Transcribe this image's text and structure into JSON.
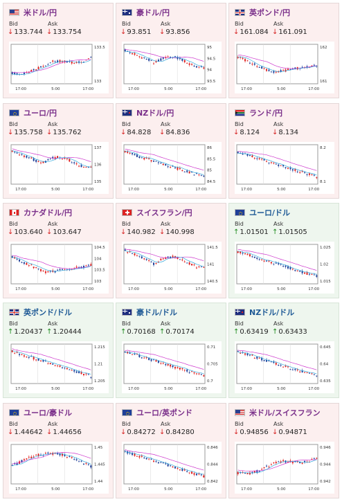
{
  "labels": {
    "bid": "Bid",
    "ask": "Ask"
  },
  "colors": {
    "down_bg": "#fcefef",
    "up_bg": "#eef6ee",
    "candle_up": "#e02020",
    "candle_down": "#1f3f99",
    "ma_long": "#cc33cc",
    "ma_short": "#33aadd"
  },
  "cards": [
    {
      "pair": "米ドル/円",
      "flag": "us",
      "direction": "down",
      "bid": "133.744",
      "ask": "133.754",
      "yticks": [
        "133.5",
        "133"
      ],
      "xticks": [
        "17:00",
        "5:00",
        "17:00"
      ],
      "trend": "up"
    },
    {
      "pair": "豪ドル/円",
      "flag": "au",
      "direction": "down",
      "bid": "93.851",
      "ask": "93.856",
      "yticks": [
        "95",
        "94.5",
        "94",
        "93.5"
      ],
      "xticks": [
        "17:00",
        "5:00",
        "17:00"
      ],
      "trend": "downflat"
    },
    {
      "pair": "英ポンド/円",
      "flag": "gb",
      "direction": "down",
      "bid": "161.084",
      "ask": "161.091",
      "yticks": [
        "162",
        "161"
      ],
      "xticks": [
        "17:00",
        "5:00",
        "17:00"
      ],
      "trend": "dip"
    },
    {
      "pair": "ユーロ/円",
      "flag": "eu",
      "direction": "down",
      "bid": "135.758",
      "ask": "135.762",
      "yticks": [
        "137",
        "136",
        "135"
      ],
      "xticks": [
        "17:00",
        "5:00",
        "17:00"
      ],
      "trend": "downflat"
    },
    {
      "pair": "NZドル/円",
      "flag": "nz",
      "direction": "down",
      "bid": "84.828",
      "ask": "84.836",
      "yticks": [
        "86",
        "85.5",
        "85",
        "84.5"
      ],
      "xticks": [
        "17:00",
        "5:00",
        "17:00"
      ],
      "trend": "down"
    },
    {
      "pair": "ランド/円",
      "flag": "za",
      "direction": "down",
      "bid": "8.124",
      "ask": "8.134",
      "yticks": [
        "8.2",
        "8.1"
      ],
      "xticks": [
        "17:00",
        "5:00",
        "17:00"
      ],
      "trend": "down"
    },
    {
      "pair": "カナダドル/円",
      "flag": "ca",
      "direction": "down",
      "bid": "103.640",
      "ask": "103.647",
      "yticks": [
        "104.5",
        "104",
        "103.5",
        "103"
      ],
      "xticks": [
        "17:00",
        "5:00",
        "17:00"
      ],
      "trend": "dip"
    },
    {
      "pair": "スイスフラン/円",
      "flag": "ch",
      "direction": "down",
      "bid": "140.982",
      "ask": "140.998",
      "yticks": [
        "141.5",
        "141",
        "140.5"
      ],
      "xticks": [
        "17:00",
        "5:00",
        "17:00"
      ],
      "trend": "downflat"
    },
    {
      "pair": "ユーロ/ドル",
      "flag": "eu",
      "direction": "up",
      "bid": "1.01501",
      "ask": "1.01505",
      "yticks": [
        "1.025",
        "1.02",
        "1.015"
      ],
      "xticks": [
        "17:00",
        "5:00",
        "17:00"
      ],
      "trend": "down"
    },
    {
      "pair": "英ポンド/ドル",
      "flag": "gb",
      "direction": "up",
      "bid": "1.20437",
      "ask": "1.20444",
      "yticks": [
        "1.215",
        "1.21",
        "1.205"
      ],
      "xticks": [
        "17:00",
        "5:00",
        "17:00"
      ],
      "trend": "down"
    },
    {
      "pair": "豪ドル/ドル",
      "flag": "au",
      "direction": "up",
      "bid": "0.70168",
      "ask": "0.70174",
      "yticks": [
        "0.71",
        "0.705",
        "0.7"
      ],
      "xticks": [
        "17:00",
        "5:00",
        "17:00"
      ],
      "trend": "down"
    },
    {
      "pair": "NZドル/ドル",
      "flag": "nz",
      "direction": "up",
      "bid": "0.63419",
      "ask": "0.63433",
      "yticks": [
        "0.645",
        "0.64",
        "0.635"
      ],
      "xticks": [
        "17:00",
        "5:00",
        "17:00"
      ],
      "trend": "down"
    },
    {
      "pair": "ユーロ/豪ドル",
      "flag": "eu",
      "direction": "down",
      "bid": "1.44642",
      "ask": "1.44656",
      "yticks": [
        "1.45",
        "1.445",
        "1.44"
      ],
      "xticks": [
        "17:00",
        "5:00",
        "17:00"
      ],
      "trend": "updown"
    },
    {
      "pair": "ユーロ/英ポンド",
      "flag": "eu",
      "direction": "down",
      "bid": "0.84272",
      "ask": "0.84280",
      "yticks": [
        "0.846",
        "0.844",
        "0.842"
      ],
      "xticks": [
        "17:00",
        "5:00",
        "17:00"
      ],
      "trend": "down"
    },
    {
      "pair": "米ドル/スイスフラン",
      "flag": "us",
      "direction": "down",
      "bid": "0.94856",
      "ask": "0.94871",
      "yticks": [
        "0.946",
        "0.944",
        "0.942"
      ],
      "xticks": [
        "17:00",
        "5:00",
        "17:00"
      ],
      "trend": "up"
    }
  ]
}
